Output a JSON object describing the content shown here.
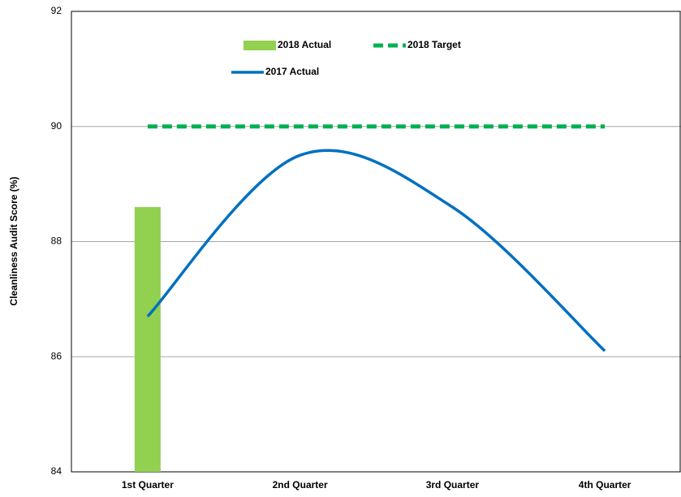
{
  "chart_data": {
    "type": "combo",
    "y_label": "Cleanliness Audit Score (%)",
    "categories": [
      "1st Quarter",
      "2nd Quarter",
      "3rd Quarter",
      "4th Quarter"
    ],
    "series": [
      {
        "name": "2018 Actual",
        "type": "bar",
        "color": "#92d050",
        "values": [
          88.6,
          null,
          null,
          null
        ]
      },
      {
        "name": "2018 Target",
        "type": "dashed-line",
        "color": "#00b050",
        "values": [
          90,
          90,
          90,
          90
        ]
      },
      {
        "name": "2017 Actual",
        "type": "smooth-line",
        "color": "#0070c0",
        "values": [
          86.7,
          89.5,
          88.6,
          86.1
        ]
      }
    ],
    "ylim": [
      84,
      92
    ],
    "yticks": [
      84,
      86,
      88,
      90,
      92
    ],
    "grid": true
  }
}
